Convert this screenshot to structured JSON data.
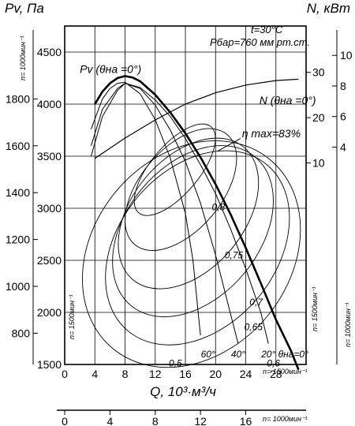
{
  "chart_data": {
    "type": "line",
    "y_left_title": "Pv, Па",
    "y_right_title": "N, кВт",
    "x_title": "Q, 10³·м³/ч",
    "conditions": [
      "t=30°C",
      "Pбар=760 мм рт.ст."
    ],
    "speed_1500_label": "n= 1500мин⁻¹",
    "speed_1000_label": "n= 1000мин⁻¹",
    "x_1500": {
      "ticks": [
        0,
        4,
        8,
        12,
        16,
        20,
        24,
        28
      ],
      "lim": [
        0,
        32
      ]
    },
    "x_1000": {
      "ticks": [
        0,
        4,
        8,
        12,
        16
      ],
      "lim": [
        0,
        21.33
      ]
    },
    "pv_1500": {
      "ticks": [
        1500,
        2000,
        2500,
        3000,
        3500,
        4000,
        4500
      ],
      "lim": [
        1500,
        4750
      ]
    },
    "pv_1000": {
      "ticks": [
        800,
        1000,
        1200,
        1400,
        1600,
        1800
      ]
    },
    "n_1500": {
      "ticks": [
        10,
        20,
        30
      ]
    },
    "n_1000": {
      "ticks": [
        4,
        6,
        8,
        10
      ]
    },
    "pv_curve_label": "Pv (θна =0°)",
    "n_curve_label": "N (θна =0°)",
    "eta_max_label": "η max=83%",
    "series": [
      {
        "name": "Pv (θна =0°)",
        "x": [
          4,
          5,
          6,
          7,
          8,
          9,
          10,
          12,
          14,
          16,
          18,
          20,
          22,
          24,
          26,
          28,
          30,
          31
        ],
        "y": [
          4000,
          4120,
          4200,
          4250,
          4270,
          4255,
          4220,
          4090,
          3920,
          3720,
          3490,
          3230,
          2940,
          2620,
          2280,
          1930,
          1630,
          1450
        ]
      },
      {
        "name": "N (θна =0°)",
        "x": [
          4,
          8,
          12,
          16,
          20,
          24,
          28,
          31
        ],
        "y": [
          11,
          15.5,
          19.5,
          23,
          25.5,
          27.2,
          28.2,
          28.5
        ]
      }
    ],
    "vane_angle_labels": [
      "60°",
      "40°",
      "20°",
      "θна=0°"
    ],
    "vane_angle_x": [
      19,
      23,
      27,
      30.3
    ],
    "vane_curves": [
      {
        "x": [
          3.5,
          5,
          6,
          7,
          8,
          10,
          12,
          14,
          16,
          17,
          18
        ],
        "y": [
          3760,
          4050,
          4150,
          4200,
          4210,
          4100,
          3850,
          3480,
          2950,
          2500,
          1780
        ]
      },
      {
        "x": [
          3.5,
          5,
          7,
          8,
          10,
          12,
          14,
          16,
          18,
          20,
          22,
          23
        ],
        "y": [
          3600,
          3950,
          4150,
          4200,
          4150,
          3990,
          3750,
          3450,
          3050,
          2550,
          1980,
          1700
        ]
      },
      {
        "x": [
          3.5,
          5,
          7,
          8,
          10,
          12,
          14,
          16,
          18,
          20,
          22,
          24,
          26,
          27
        ],
        "y": [
          3500,
          3880,
          4130,
          4200,
          4160,
          4040,
          3880,
          3670,
          3420,
          3140,
          2800,
          2420,
          2000,
          1700
        ]
      }
    ],
    "efficiency_labels": [
      "0,8",
      "0,75",
      "0,7",
      "0,65",
      "0,6",
      "0,5"
    ],
    "efficiency_label_xy": [
      [
        19.5,
        2980
      ],
      [
        21.2,
        2520
      ],
      [
        24.5,
        2070
      ],
      [
        23.8,
        1830
      ],
      [
        26.8,
        1480
      ],
      [
        13.8,
        1480
      ]
    ],
    "efficiency_levels": [
      {
        "cx": 14.6,
        "cy": 3370,
        "rx": 3.2,
        "ry": 540,
        "rot": 40
      },
      {
        "cx": 15.4,
        "cy": 3180,
        "rx": 5.4,
        "ry": 690,
        "rot": 40
      },
      {
        "cx": 16.4,
        "cy": 2950,
        "rx": 7.4,
        "ry": 830,
        "rot": 40
      },
      {
        "cx": 17.0,
        "cy": 2780,
        "rx": 8.8,
        "ry": 930,
        "rot": 40
      },
      {
        "cx": 17.6,
        "cy": 2620,
        "rx": 10.4,
        "ry": 1040,
        "rot": 40
      },
      {
        "cx": 16.8,
        "cy": 2560,
        "rx": 13.0,
        "ry": 1180,
        "rot": 40
      }
    ],
    "grid": true
  }
}
